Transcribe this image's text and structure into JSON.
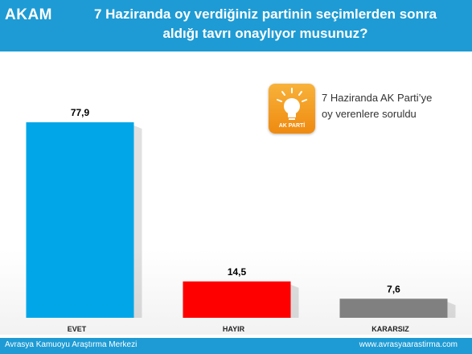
{
  "header": {
    "logo": "AKAM",
    "title_line1": "7 Haziranda oy verdiğiniz partinin seçimlerden sonra",
    "title_line2": "aldığı tavrı onaylıyor musunuz?"
  },
  "note": {
    "badge_icon": "ak-parti-lightbulb-icon",
    "badge_label": "AK PARTİ",
    "line1": "7 Haziranda AK Parti’ye",
    "line2": "oy verenlere soruldu"
  },
  "footer": {
    "left": "Avrasya Kamuoyu Araştırma Merkezi",
    "right": "www.avrasyaarastirma.com"
  },
  "colors": {
    "header": "#1e9bd4",
    "evet": "#00a6e8",
    "hayir": "#ff0000",
    "kararsiz": "#808080"
  },
  "chart_data": {
    "type": "bar",
    "title": "7 Haziranda oy verdiğiniz partinin seçimlerden sonra aldığı tavrı onaylıyor musunuz?",
    "categories": [
      "EVET",
      "HAYIR",
      "KARARSIZ"
    ],
    "values": [
      77.9,
      14.5,
      7.6
    ],
    "value_labels": [
      "77,9",
      "14,5",
      "7,6"
    ],
    "bar_colors": [
      "#00a6e8",
      "#ff0000",
      "#808080"
    ],
    "ylim": [
      0,
      100
    ],
    "grid": false,
    "legend": "none"
  }
}
